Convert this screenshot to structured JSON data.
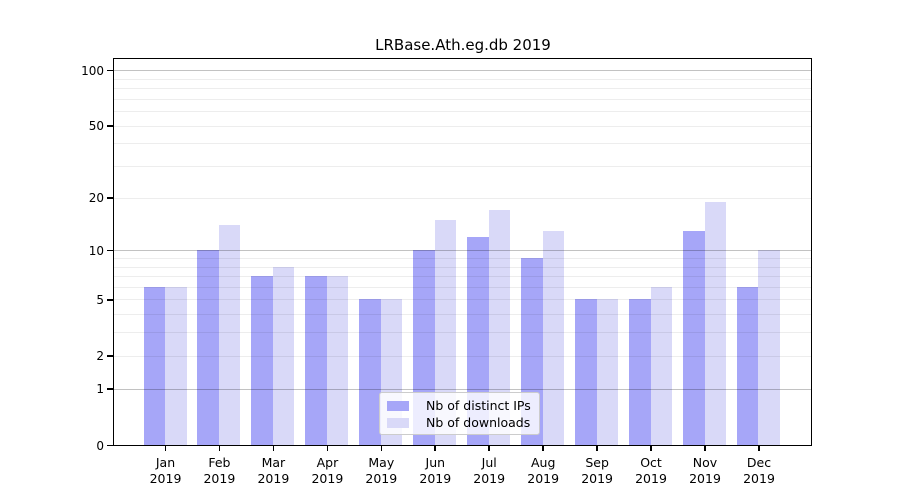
{
  "chart_data": {
    "type": "bar",
    "title": "LRBase.Ath.eg.db 2019",
    "categories": [
      "Jan",
      "Feb",
      "Mar",
      "Apr",
      "May",
      "Jun",
      "Jul",
      "Aug",
      "Sep",
      "Oct",
      "Nov",
      "Dec"
    ],
    "year": "2019",
    "series": [
      {
        "name": "Nb of distinct IPs",
        "color": "#a6a6f8",
        "values": [
          6,
          10,
          7,
          7,
          5,
          10,
          12,
          9,
          5,
          5,
          13,
          6
        ]
      },
      {
        "name": "Nb of downloads",
        "color": "#d9d9f8",
        "values": [
          6,
          14,
          8,
          7,
          5,
          15,
          17,
          13,
          5,
          6,
          19,
          10
        ]
      }
    ],
    "y_axis": {
      "scale": "log1p",
      "tick_values": [
        0,
        1,
        2,
        5,
        10,
        20,
        50,
        100
      ],
      "major_grid_values": [
        1,
        10,
        100
      ],
      "minor_grid_values": [
        2,
        3,
        4,
        5,
        6,
        7,
        8,
        9,
        20,
        30,
        40,
        50,
        60,
        70,
        80,
        90
      ],
      "ylim": [
        0,
        113
      ]
    },
    "legend_position": "lower center-right",
    "grid": true
  },
  "colors": {
    "background": "#ffffff",
    "spine": "#000000",
    "grid_minor": "rgba(0,0,0,0.07)",
    "grid_major": "rgba(0,0,0,0.24)",
    "legend_border": "#cccccc",
    "legend_background": "rgba(255,255,255,0.8)"
  }
}
